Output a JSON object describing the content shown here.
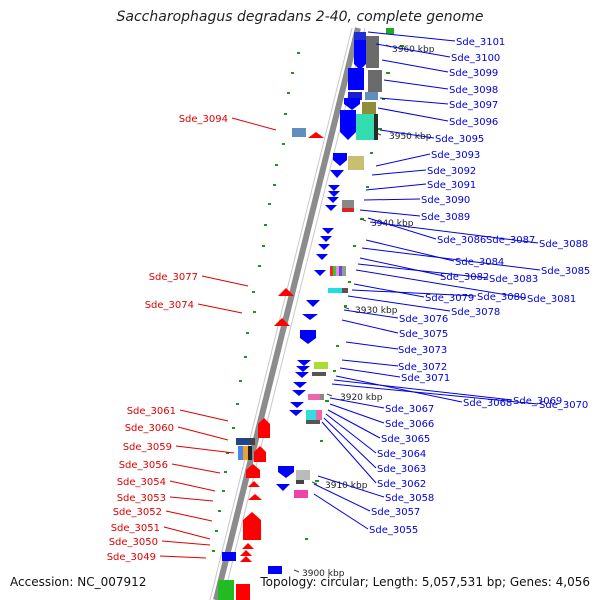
{
  "title": "Saccharophagus degradans 2-40, complete genome",
  "accession": "Accession: NC_007912",
  "summary": "Topology: circular; Length: 5,057,531 bp; Genes: 4,056",
  "kbp_labels": [
    {
      "id": "k3960",
      "text": "3960 kbp"
    },
    {
      "id": "k3950",
      "text": "3950 kbp"
    },
    {
      "id": "k3940",
      "text": "3940 kbp"
    },
    {
      "id": "k3930",
      "text": "3930 kbp"
    },
    {
      "id": "k3920",
      "text": "3920 kbp"
    },
    {
      "id": "k3910",
      "text": "3910 kbp"
    },
    {
      "id": "k3900",
      "text": "3900 kbp"
    }
  ],
  "left_genes": [
    "Sde_3094",
    "Sde_3077",
    "Sde_3074",
    "Sde_3061",
    "Sde_3060",
    "Sde_3059",
    "Sde_3056",
    "Sde_3054",
    "Sde_3053",
    "Sde_3052",
    "Sde_3051",
    "Sde_3050",
    "Sde_3049"
  ],
  "right_genes": [
    "Sde_3101",
    "Sde_3100",
    "Sde_3099",
    "Sde_3098",
    "Sde_3097",
    "Sde_3096",
    "Sde_3095",
    "Sde_3093",
    "Sde_3092",
    "Sde_3091",
    "Sde_3090",
    "Sde_3089",
    "Sde_3086",
    "Sde_3087",
    "Sde_3088",
    "Sde_3084",
    "Sde_3085",
    "Sde_3082",
    "Sde_3083",
    "Sde_3081",
    "Sde_3079",
    "Sde_3080",
    "Sde_3078",
    "Sde_3076",
    "Sde_3075",
    "Sde_3073",
    "Sde_3072",
    "Sde_3071",
    "Sde_3068",
    "Sde_3069",
    "Sde_3070",
    "Sde_3067",
    "Sde_3066",
    "Sde_3065",
    "Sde_3064",
    "Sde_3063",
    "Sde_3062",
    "Sde_3058",
    "Sde_3057",
    "Sde_3055"
  ],
  "colors": {
    "forward": "#ff0000",
    "reverse": "#0000ff",
    "backbone": "#8c8c8c",
    "gc_marker": "#1a9a1a"
  }
}
